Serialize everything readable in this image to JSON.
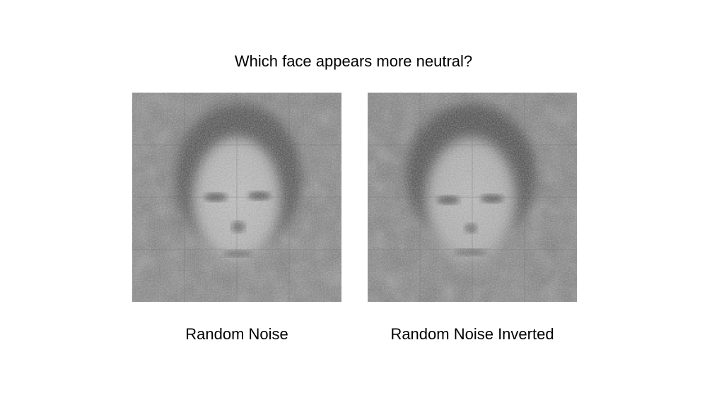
{
  "question": "Which face appears more neutral?",
  "faces": [
    {
      "caption": "Random Noise",
      "image_icon": "noisy-face-image"
    },
    {
      "caption": "Random Noise Inverted",
      "image_icon": "noisy-face-image-inverted"
    }
  ],
  "colors": {
    "background": "#ffffff",
    "text": "#000000",
    "image_mid_gray": "#808080"
  }
}
